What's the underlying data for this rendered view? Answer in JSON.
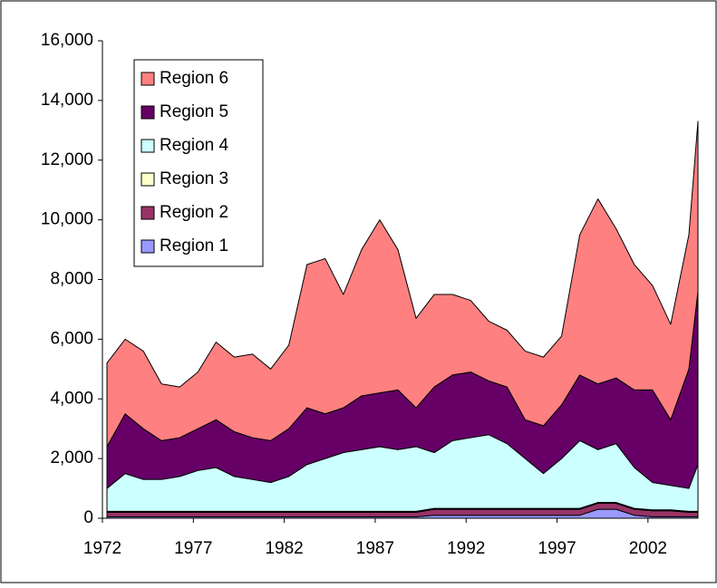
{
  "chart_data": {
    "type": "stacked-area",
    "x": [
      1972.25,
      1973.25,
      1974.25,
      1975.25,
      1976.25,
      1977.25,
      1978.25,
      1979.25,
      1980.25,
      1981.25,
      1982.25,
      1983.25,
      1984.25,
      1985.25,
      1986.25,
      1987.25,
      1988.25,
      1989.25,
      1990.25,
      1991.25,
      1992.25,
      1993.25,
      1994.25,
      1995.25,
      1996.25,
      1997.25,
      1998.25,
      1999.25,
      2000.25,
      2001.25,
      2002.25,
      2003.25,
      2004.25,
      2004.75
    ],
    "series": [
      {
        "name": "Region 1",
        "color": "#9999ff",
        "values": [
          50,
          50,
          50,
          50,
          50,
          50,
          50,
          50,
          50,
          50,
          50,
          50,
          50,
          50,
          50,
          50,
          50,
          50,
          100,
          100,
          100,
          100,
          100,
          100,
          100,
          100,
          100,
          300,
          300,
          100,
          50,
          50,
          50,
          50
        ]
      },
      {
        "name": "Region 2",
        "color": "#993366",
        "values": [
          150,
          150,
          150,
          150,
          150,
          150,
          150,
          150,
          150,
          150,
          150,
          150,
          150,
          150,
          150,
          150,
          150,
          150,
          200,
          200,
          200,
          200,
          200,
          200,
          200,
          200,
          200,
          200,
          200,
          200,
          200,
          200,
          150,
          150
        ]
      },
      {
        "name": "Region 3",
        "color": "#ffffcc",
        "values": [
          30,
          30,
          30,
          30,
          30,
          30,
          30,
          30,
          30,
          30,
          30,
          30,
          30,
          30,
          30,
          30,
          30,
          30,
          30,
          30,
          30,
          30,
          30,
          30,
          30,
          30,
          30,
          30,
          30,
          30,
          30,
          30,
          30,
          30
        ]
      },
      {
        "name": "Region 4",
        "color": "#ccffff",
        "values": [
          770,
          1270,
          1070,
          1070,
          1170,
          1370,
          1470,
          1170,
          1070,
          970,
          1170,
          1570,
          1770,
          1970,
          2070,
          2170,
          2070,
          2170,
          1870,
          2270,
          2370,
          2470,
          2170,
          1670,
          1170,
          1670,
          2270,
          1770,
          1970,
          1370,
          920,
          820,
          770,
          1570
        ]
      },
      {
        "name": "Region 5",
        "color": "#660066",
        "values": [
          1400,
          2000,
          1700,
          1300,
          1300,
          1400,
          1600,
          1500,
          1400,
          1400,
          1600,
          1900,
          1500,
          1500,
          1800,
          1800,
          2000,
          1300,
          2200,
          2200,
          2200,
          1800,
          1900,
          1300,
          1600,
          1800,
          2200,
          2200,
          2200,
          2600,
          3100,
          2200,
          4000,
          5800
        ]
      },
      {
        "name": "Region 6",
        "color": "#ff8080",
        "values": [
          2800,
          2500,
          2600,
          1900,
          1700,
          1900,
          2600,
          2500,
          2800,
          2400,
          2800,
          4800,
          5200,
          3800,
          4900,
          5800,
          4700,
          3000,
          3100,
          2700,
          2400,
          2000,
          1900,
          2300,
          2300,
          2300,
          4700,
          6200,
          5000,
          4200,
          3500,
          3200,
          4500,
          5700
        ]
      }
    ],
    "xlim": [
      1972,
      2004.75
    ],
    "xticks": [
      1972,
      1977,
      1982,
      1987,
      1992,
      1997,
      2002
    ],
    "ylim": [
      0,
      16000
    ],
    "yticks": [
      0,
      {
        "value": 2000,
        "label": "2,000"
      },
      {
        "value": 4000,
        "label": "4,000"
      },
      {
        "value": 6000,
        "label": "6,000"
      },
      {
        "value": 8000,
        "label": "8,000"
      },
      {
        "value": 10000,
        "label": "10,000"
      },
      {
        "value": 12000,
        "label": "12,000"
      },
      {
        "value": 14000,
        "label": "14,000"
      },
      {
        "value": 16000,
        "label": "16,000"
      }
    ],
    "legend": "upper left"
  }
}
